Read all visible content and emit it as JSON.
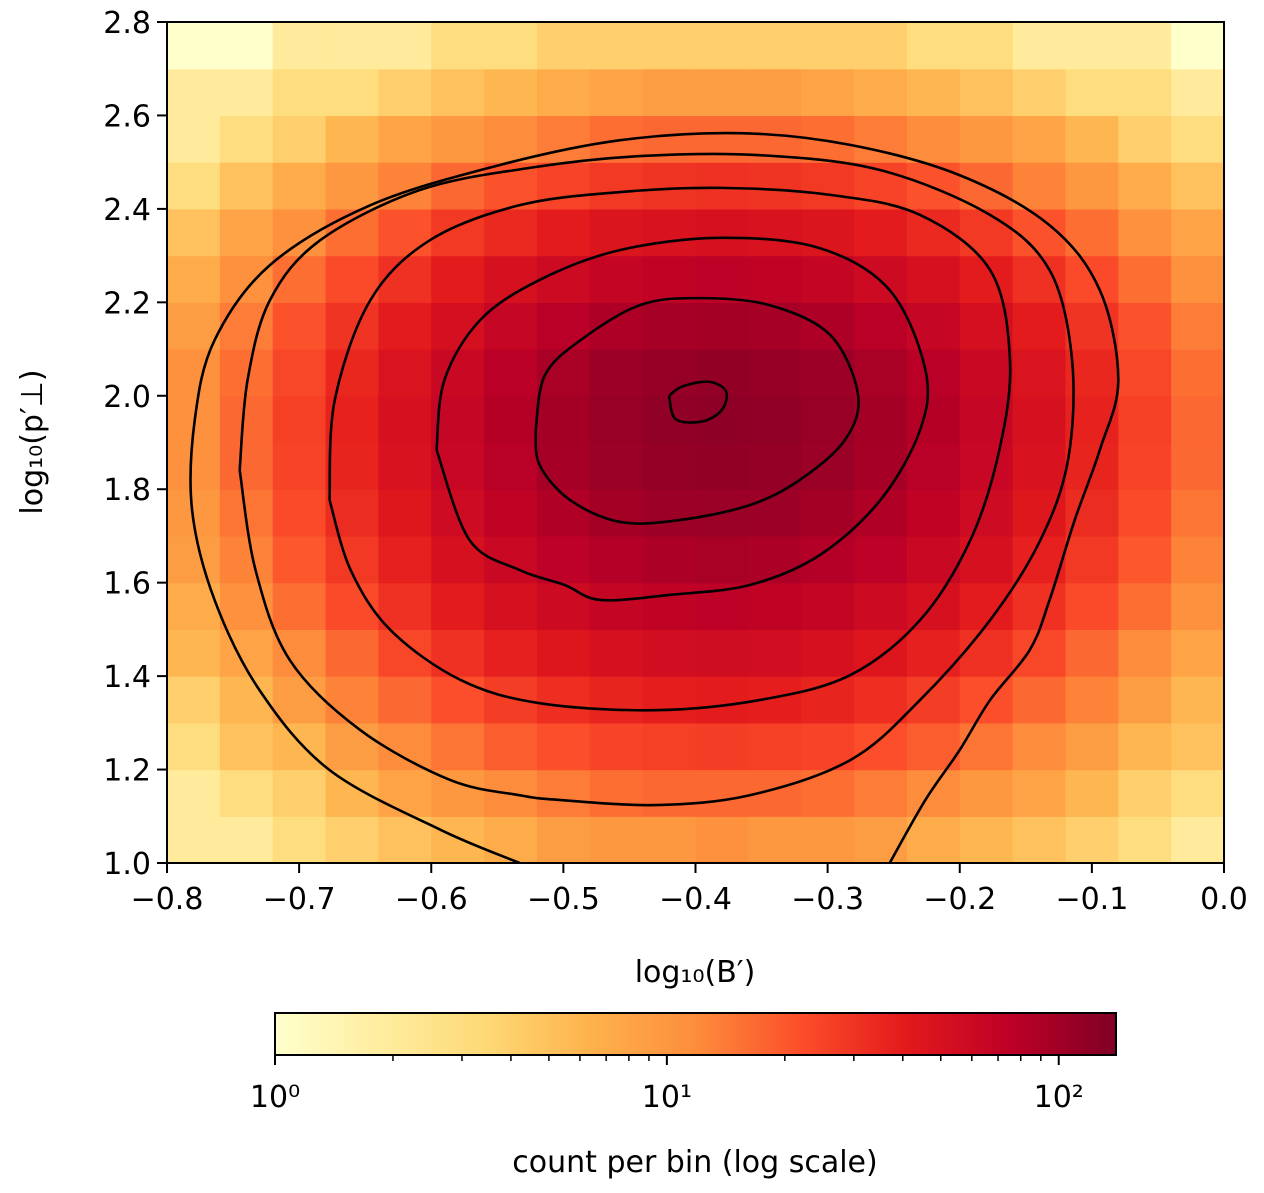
{
  "chart_data": {
    "type": "hist2d",
    "xlabel": "log₁₀(B′)",
    "ylabel": "log₁₀(p′⊥)",
    "xlim": [
      -0.8,
      0.0
    ],
    "ylim": [
      1.0,
      2.8
    ],
    "xticks": [
      {
        "value": -0.8,
        "label": "−0.8"
      },
      {
        "value": -0.7,
        "label": "−0.7"
      },
      {
        "value": -0.6,
        "label": "−0.6"
      },
      {
        "value": -0.5,
        "label": "−0.5"
      },
      {
        "value": -0.4,
        "label": "−0.4"
      },
      {
        "value": -0.3,
        "label": "−0.3"
      },
      {
        "value": -0.2,
        "label": "−0.2"
      },
      {
        "value": -0.1,
        "label": "−0.1"
      },
      {
        "value": 0,
        "label": "0.0"
      }
    ],
    "yticks": [
      {
        "value": 1,
        "label": "1.0"
      },
      1.2,
      1.4,
      1.6,
      1.8,
      {
        "value": 2,
        "label": "2.0"
      },
      2.2,
      2.4,
      2.6,
      2.8
    ],
    "xbins": [
      -0.8,
      -0.76,
      -0.72,
      -0.68,
      -0.64,
      -0.6,
      -0.56,
      -0.52,
      -0.48,
      -0.44,
      -0.4,
      -0.36,
      -0.32,
      -0.28,
      -0.24,
      -0.2,
      -0.16,
      -0.12,
      -0.08,
      -0.04,
      0.0
    ],
    "ybins": [
      1.0,
      1.1,
      1.2,
      1.3,
      1.4,
      1.5,
      1.6,
      1.7,
      1.8,
      1.9,
      2.0,
      2.1,
      2.2,
      2.3,
      2.4,
      2.5,
      2.6,
      2.7,
      2.8
    ],
    "values": [
      [
        2,
        2,
        3,
        4,
        5,
        6,
        7,
        9,
        10,
        10,
        11,
        10,
        10,
        9,
        7,
        6,
        5,
        4,
        3,
        2
      ],
      [
        2,
        3,
        4,
        6,
        8,
        10,
        12,
        14,
        16,
        17,
        17,
        17,
        16,
        14,
        12,
        10,
        8,
        6,
        4,
        3
      ],
      [
        3,
        5,
        6,
        9,
        12,
        15,
        19,
        22,
        25,
        26,
        27,
        26,
        25,
        22,
        19,
        15,
        12,
        9,
        6,
        5
      ],
      [
        4,
        6,
        9,
        13,
        17,
        22,
        27,
        32,
        36,
        39,
        40,
        39,
        36,
        32,
        27,
        22,
        17,
        13,
        9,
        6
      ],
      [
        6,
        8,
        12,
        17,
        24,
        31,
        38,
        45,
        51,
        55,
        56,
        55,
        51,
        45,
        38,
        31,
        24,
        17,
        12,
        8
      ],
      [
        7,
        11,
        16,
        23,
        31,
        40,
        50,
        59,
        67,
        72,
        74,
        72,
        67,
        59,
        50,
        40,
        31,
        23,
        16,
        11
      ],
      [
        9,
        13,
        20,
        28,
        38,
        50,
        62,
        74,
        83,
        89,
        92,
        89,
        83,
        74,
        62,
        50,
        38,
        28,
        20,
        13
      ],
      [
        10,
        15,
        23,
        33,
        44,
        58,
        72,
        86,
        97,
        104,
        107,
        104,
        97,
        86,
        72,
        58,
        44,
        33,
        23,
        15
      ],
      [
        11,
        17,
        25,
        36,
        49,
        64,
        79,
        94,
        106,
        114,
        117,
        114,
        106,
        94,
        79,
        64,
        49,
        36,
        25,
        17
      ],
      [
        11,
        17,
        26,
        37,
        50,
        66,
        82,
        97,
        110,
        118,
        121,
        118,
        110,
        97,
        82,
        66,
        50,
        37,
        26,
        17
      ],
      [
        11,
        16,
        24,
        35,
        47,
        62,
        78,
        92,
        104,
        112,
        115,
        112,
        104,
        92,
        78,
        62,
        47,
        35,
        24,
        16
      ],
      [
        9,
        14,
        21,
        30,
        40,
        53,
        66,
        78,
        88,
        95,
        97,
        95,
        88,
        78,
        66,
        53,
        40,
        30,
        21,
        14
      ],
      [
        7,
        11,
        16,
        23,
        31,
        40,
        50,
        59,
        67,
        72,
        74,
        72,
        67,
        59,
        50,
        40,
        31,
        23,
        16,
        11
      ],
      [
        5,
        8,
        11,
        16,
        21,
        28,
        34,
        40,
        46,
        49,
        50,
        49,
        46,
        40,
        34,
        28,
        21,
        16,
        11,
        8
      ],
      [
        3,
        5,
        7,
        10,
        13,
        17,
        21,
        25,
        28,
        30,
        31,
        30,
        28,
        25,
        21,
        17,
        13,
        10,
        7,
        5
      ],
      [
        2,
        3,
        4,
        6,
        8,
        10,
        12,
        14,
        16,
        17,
        17,
        17,
        16,
        14,
        12,
        10,
        8,
        6,
        4,
        3
      ],
      [
        2,
        2,
        3,
        3,
        4,
        5,
        6,
        7,
        8,
        9,
        9,
        9,
        8,
        7,
        6,
        5,
        4,
        3,
        3,
        2
      ],
      [
        1,
        1,
        2,
        2,
        2,
        3,
        3,
        4,
        4,
        4,
        4,
        4,
        4,
        4,
        3,
        3,
        2,
        2,
        2,
        1
      ]
    ],
    "colormap": [
      "#ffffcc",
      "#ffeda0",
      "#fed976",
      "#feb24c",
      "#fd8d3c",
      "#fc4e2a",
      "#e31a1c",
      "#bd0026",
      "#800026"
    ],
    "clim": [
      1,
      140
    ],
    "colorbar_label": "count per bin (log scale)",
    "colorbar_ticks": [
      {
        "value": 1,
        "label": "10⁰"
      },
      {
        "value": 10,
        "label": "10¹"
      },
      {
        "value": 100,
        "label": "10²"
      }
    ],
    "colorbar_minor_ticks": [
      2,
      3,
      4,
      5,
      6,
      7,
      8,
      9,
      20,
      30,
      40,
      50,
      60,
      70,
      80,
      90
    ],
    "contour_color": "#000000",
    "contours": [
      {
        "x": [
          -0.42,
          -0.41,
          -0.39,
          -0.377,
          -0.38,
          -0.395,
          -0.415,
          -0.42
        ],
        "y": [
          2.0,
          2.02,
          2.03,
          2.01,
          1.97,
          1.945,
          1.95,
          2.0
        ]
      },
      {
        "x": [
          -0.521,
          -0.514,
          -0.487,
          -0.442,
          -0.397,
          -0.344,
          -0.298,
          -0.277,
          -0.287,
          -0.321,
          -0.359,
          -0.412,
          -0.457,
          -0.495,
          -0.518,
          -0.521
        ],
        "y": [
          1.927,
          2.044,
          2.119,
          2.194,
          2.209,
          2.194,
          2.13,
          2.002,
          1.905,
          1.82,
          1.766,
          1.734,
          1.73,
          1.777,
          1.852,
          1.927
        ]
      },
      {
        "x": [
          -0.596,
          -0.59,
          -0.563,
          -0.518,
          -0.457,
          -0.381,
          -0.306,
          -0.253,
          -0.226,
          -0.23,
          -0.26,
          -0.306,
          -0.359,
          -0.419,
          -0.472,
          -0.499,
          -0.533,
          -0.571,
          -0.596
        ],
        "y": [
          1.884,
          2.034,
          2.162,
          2.248,
          2.312,
          2.338,
          2.316,
          2.226,
          2.055,
          1.927,
          1.777,
          1.659,
          1.595,
          1.574,
          1.563,
          1.595,
          1.627,
          1.691,
          1.884
        ]
      },
      {
        "x": [
          -0.677,
          -0.673,
          -0.646,
          -0.601,
          -0.533,
          -0.457,
          -0.381,
          -0.298,
          -0.23,
          -0.177,
          -0.162,
          -0.17,
          -0.192,
          -0.23,
          -0.283,
          -0.351,
          -0.431,
          -0.518,
          -0.578,
          -0.631,
          -0.661,
          -0.677
        ],
        "y": [
          1.777,
          1.991,
          2.205,
          2.333,
          2.408,
          2.436,
          2.445,
          2.43,
          2.387,
          2.269,
          2.077,
          1.884,
          1.691,
          1.52,
          1.402,
          1.349,
          1.327,
          1.342,
          1.392,
          1.499,
          1.627,
          1.777
        ]
      },
      {
        "x": [
          -0.745,
          -0.739,
          -0.722,
          -0.684,
          -0.609,
          -0.525,
          -0.442,
          -0.351,
          -0.26,
          -0.177,
          -0.132,
          -0.115,
          -0.118,
          -0.139,
          -0.177,
          -0.23,
          -0.283,
          -0.359,
          -0.431,
          -0.503,
          -0.533,
          -0.586,
          -0.654,
          -0.707,
          -0.733,
          -0.745
        ],
        "y": [
          1.841,
          2.034,
          2.205,
          2.333,
          2.44,
          2.488,
          2.513,
          2.515,
          2.483,
          2.387,
          2.269,
          2.077,
          1.863,
          1.691,
          1.52,
          1.349,
          1.22,
          1.145,
          1.124,
          1.135,
          1.145,
          1.178,
          1.285,
          1.434,
          1.627,
          1.841
        ]
      },
      {
        "x": [
          -0.533,
          -0.593,
          -0.677,
          -0.73,
          -0.764,
          -0.781,
          -0.779,
          -0.764,
          -0.722,
          -0.646,
          -0.548,
          -0.457,
          -0.366,
          -0.283,
          -0.2,
          -0.132,
          -0.094,
          -0.08,
          -0.094,
          -0.113,
          -0.132,
          -0.147,
          -0.177,
          -0.2,
          -0.226,
          -0.253
        ],
        "y": [
          1.0,
          1.071,
          1.199,
          1.37,
          1.563,
          1.755,
          1.948,
          2.119,
          2.28,
          2.408,
          2.494,
          2.547,
          2.562,
          2.537,
          2.472,
          2.365,
          2.226,
          2.034,
          1.884,
          1.734,
          1.563,
          1.456,
          1.349,
          1.242,
          1.135,
          1.0
        ]
      }
    ]
  }
}
